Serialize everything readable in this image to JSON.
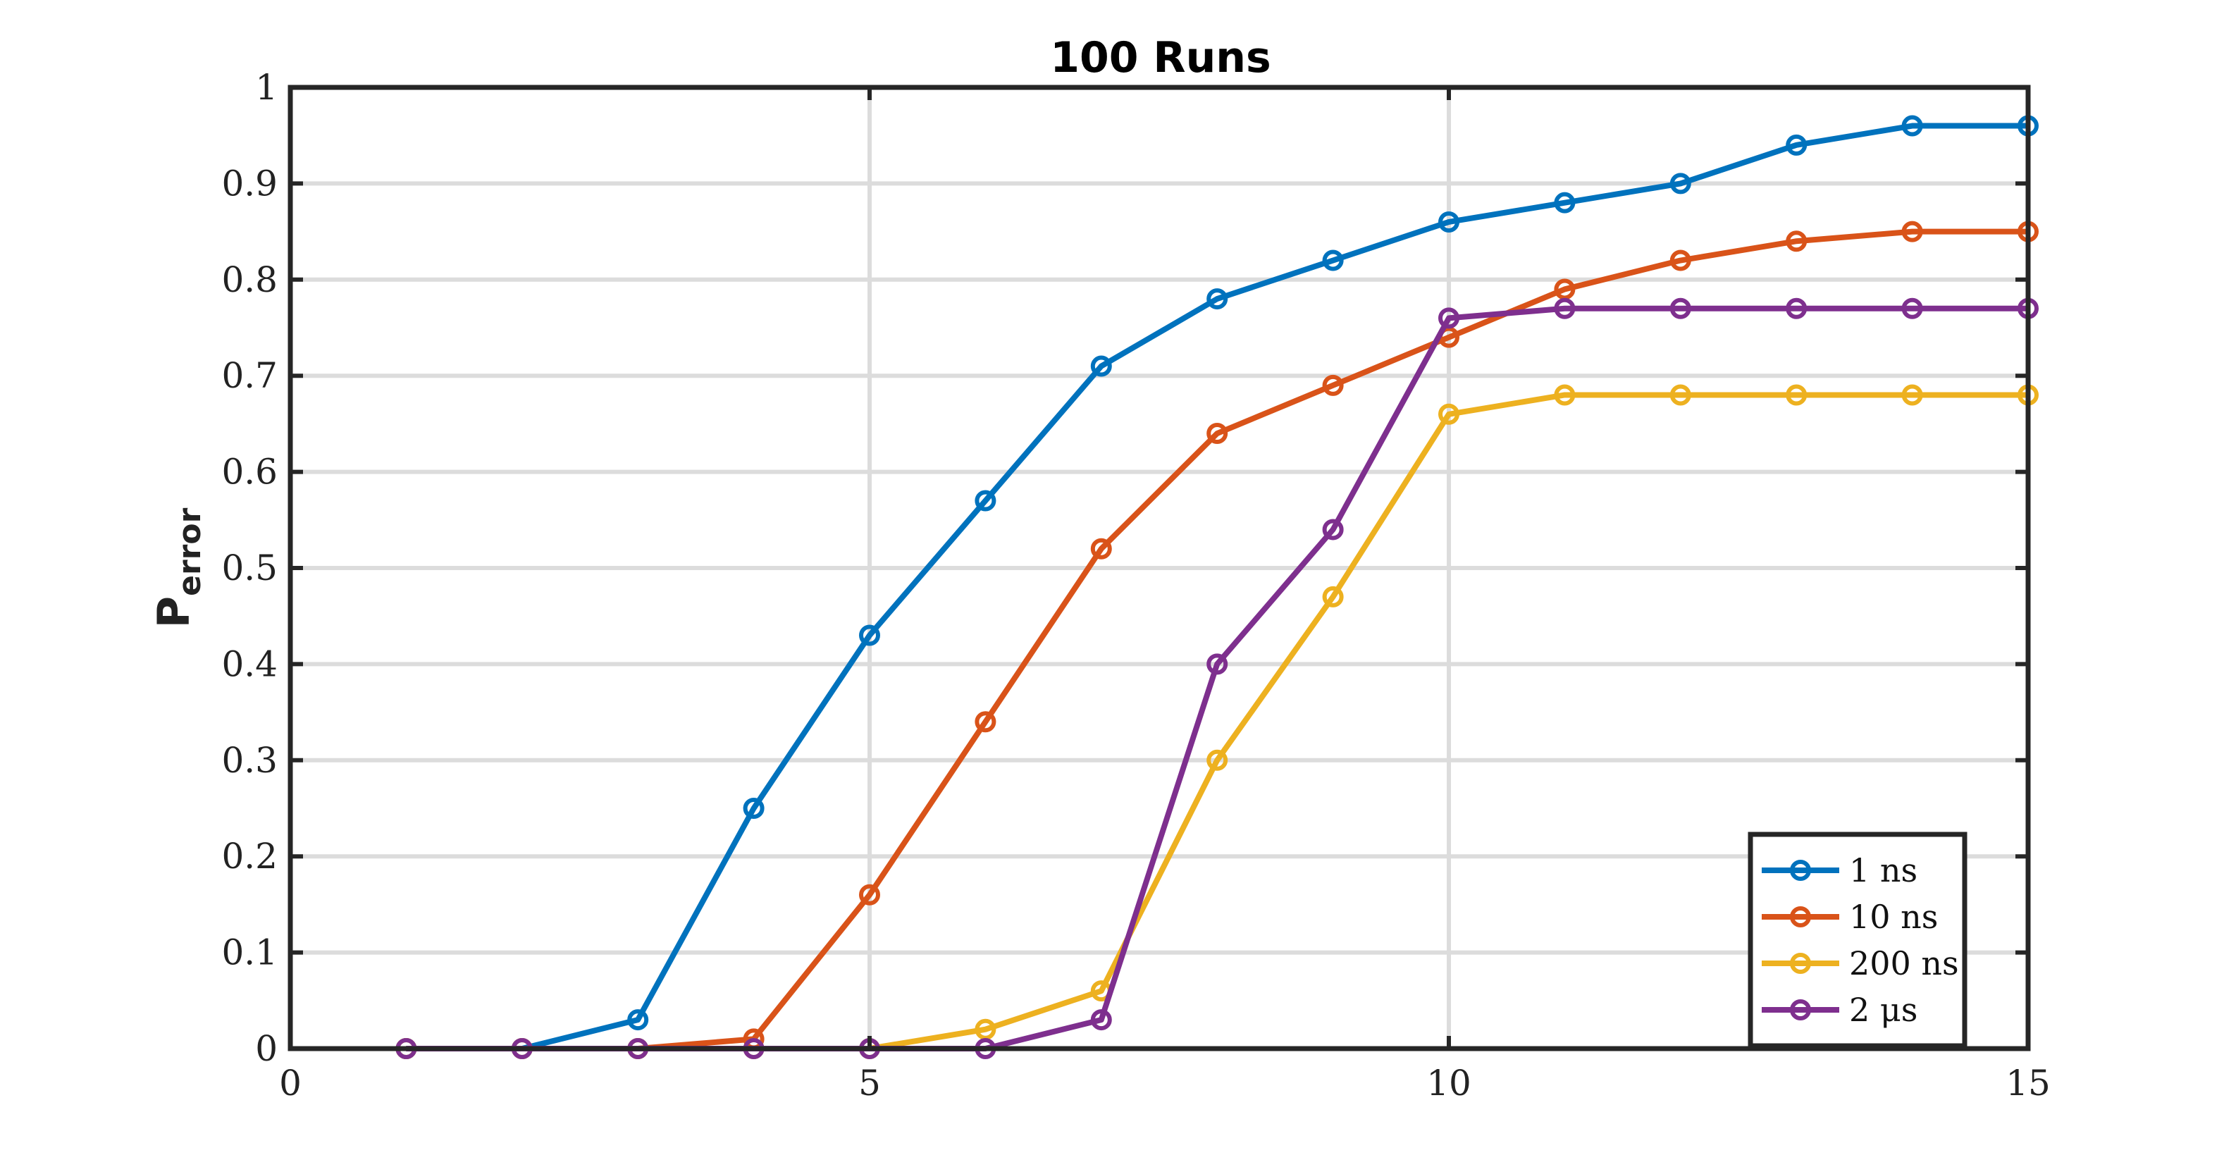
{
  "chart_data": {
    "type": "line",
    "title": "100 Runs",
    "ylabel": "P",
    "ylabel_subscript": "error",
    "xlabel": "",
    "xlim": [
      0,
      15
    ],
    "ylim": [
      0,
      1
    ],
    "xticks": [
      "0",
      "5",
      "10",
      "15"
    ],
    "yticks": [
      "0",
      "0.1",
      "0.2",
      "0.3",
      "0.4",
      "0.5",
      "0.6",
      "0.7",
      "0.8",
      "0.9",
      "1"
    ],
    "grid": true,
    "legend_position": "bottom-right",
    "x": [
      1,
      2,
      3,
      4,
      5,
      6,
      7,
      8,
      9,
      10,
      11,
      12,
      13,
      14,
      15
    ],
    "series": [
      {
        "name": "1 ns",
        "color": "#0072BD",
        "values": [
          0,
          0,
          0.03,
          0.25,
          0.43,
          0.57,
          0.71,
          0.78,
          0.82,
          0.86,
          0.88,
          0.9,
          0.94,
          0.96,
          0.96
        ]
      },
      {
        "name": "10 ns",
        "color": "#D95319",
        "values": [
          0,
          0,
          0,
          0.01,
          0.16,
          0.34,
          0.52,
          0.64,
          0.69,
          0.74,
          0.79,
          0.82,
          0.84,
          0.85,
          0.85
        ]
      },
      {
        "name": "200 ns",
        "color": "#EDB120",
        "values": [
          0,
          0,
          0,
          0,
          0,
          0.02,
          0.06,
          0.3,
          0.47,
          0.66,
          0.68,
          0.68,
          0.68,
          0.68,
          0.68
        ]
      },
      {
        "name": "2 μs",
        "color": "#7E2F8E",
        "values": [
          0,
          0,
          0,
          0,
          0,
          0,
          0.03,
          0.4,
          0.54,
          0.76,
          0.77,
          0.77,
          0.77,
          0.77,
          0.77
        ]
      }
    ]
  }
}
